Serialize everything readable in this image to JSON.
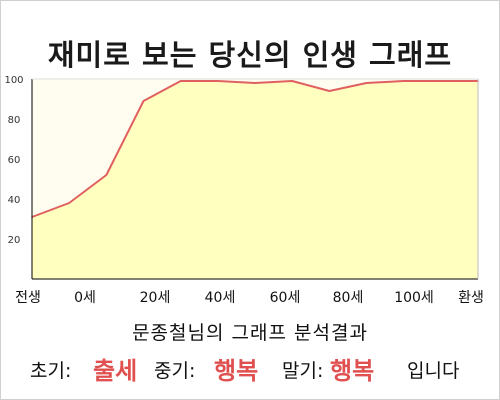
{
  "title": "재미로 보는 당신의 인생 그래프",
  "subtitle": "문종철님의 그래프 분석결과",
  "result": {
    "early_label": "초기:",
    "early_value": "출세",
    "mid_label": "중기:",
    "mid_value": "행복",
    "late_label": "말기:",
    "late_value": "행복",
    "ending": "입니다"
  },
  "colors": {
    "plot_bg": "#fffdf0",
    "fill": "#ffffc0",
    "line": "#e06060",
    "highlight": "#e05050"
  },
  "chart_data": {
    "type": "area",
    "title": "재미로 보는 당신의 인생 그래프",
    "xlabel": "",
    "ylabel": "",
    "x_tick_labels": [
      "전생",
      "0세",
      "20세",
      "40세",
      "60세",
      "80세",
      "100세",
      "환생"
    ],
    "y_ticks": [
      20,
      40,
      60,
      80,
      100
    ],
    "ylim": [
      0,
      100
    ],
    "grid": false,
    "series": [
      {
        "x": [
          -10,
          0,
          10,
          20,
          30,
          40,
          50,
          60,
          70,
          80,
          90,
          100,
          110
        ],
        "values": [
          31,
          38,
          52,
          89,
          99,
          99,
          98,
          99,
          94,
          98,
          99,
          99,
          99
        ]
      }
    ],
    "xlim": [
      -10,
      110
    ]
  }
}
